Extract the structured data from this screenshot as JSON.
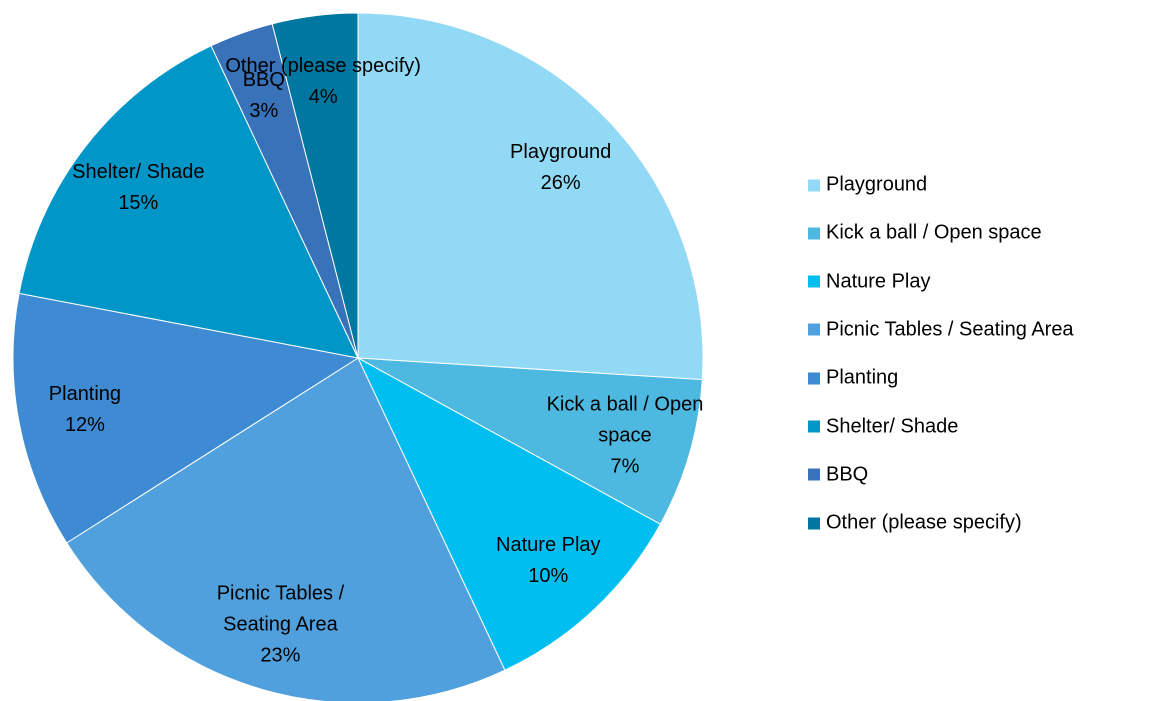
{
  "chart_data": {
    "type": "pie",
    "categories": [
      "Playground",
      "Kick a ball / Open space",
      "Nature Play",
      "Picnic Tables / Seating Area",
      "Planting",
      "Shelter/ Shade",
      "BBQ",
      "Other (please specify)"
    ],
    "values": [
      26,
      7,
      10,
      23,
      12,
      15,
      3,
      4
    ],
    "value_labels": [
      "26%",
      "7%",
      "10%",
      "23%",
      "12%",
      "15%",
      "3%",
      "4%"
    ],
    "colors": [
      "#92d9f5",
      "#4db8e0",
      "#00bff0",
      "#4fa0dc",
      "#3e8bd3",
      "#0096c8",
      "#3872b8",
      "#0077a0"
    ],
    "legend": "right"
  }
}
